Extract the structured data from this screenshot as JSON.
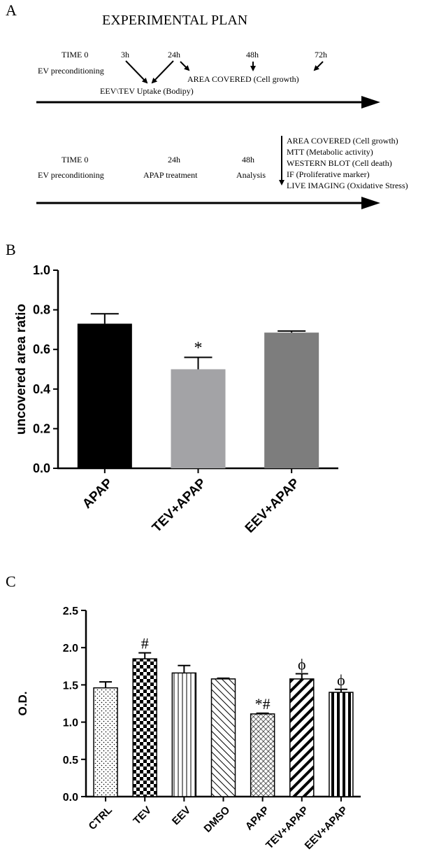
{
  "panel_a": {
    "letter": "A",
    "title": "EXPERIMENTAL PLAN",
    "timeline1": {
      "time0": "TIME 0",
      "t3": "3h",
      "t24": "24h",
      "t48": "48h",
      "t72": "72h",
      "precond": "EV preconditioning",
      "area": "AREA COVERED (Cell growth)",
      "uptake": "EEV\\TEV Uptake (Bodipy)"
    },
    "timeline2": {
      "time0": "TIME 0",
      "t24": "24h",
      "t48": "48h",
      "precond": "EV preconditioning",
      "apap": "APAP treatment",
      "analysis": "Analysis",
      "readouts": [
        "AREA COVERED (Cell growth)",
        "MTT (Metabolic activity)",
        "WESTERN BLOT (Cell death)",
        "IF (Proliferative marker)",
        "LIVE IMAGING (Oxidative Stress)"
      ]
    }
  },
  "chart_data": [
    {
      "panel": "B",
      "type": "bar",
      "ylabel": "uncovered area ratio",
      "ylim": [
        0,
        1.0
      ],
      "yticks": [
        "0.0",
        "0.2",
        "0.4",
        "0.6",
        "0.8",
        "1.0"
      ],
      "categories": [
        "APAP",
        "TEV+APAP",
        "EEV+APAP"
      ],
      "values": [
        0.73,
        0.5,
        0.685
      ],
      "errors": [
        0.05,
        0.06,
        0.008
      ],
      "annotations": [
        "",
        "*",
        ""
      ],
      "colors": [
        "#000000",
        "#a3a3a6",
        "#7d7d7d"
      ]
    },
    {
      "panel": "C",
      "type": "bar",
      "ylabel": "O.D.",
      "ylim": [
        0,
        2.5
      ],
      "yticks": [
        "0.0",
        "0.5",
        "1.0",
        "1.5",
        "2.0",
        "2.5"
      ],
      "categories": [
        "CTRL",
        "TEV",
        "EEV",
        "DMSO",
        "APAP",
        "TEV+APAP",
        "EEV+APAP"
      ],
      "values": [
        1.46,
        1.85,
        1.66,
        1.58,
        1.11,
        1.58,
        1.4
      ],
      "errors": [
        0.08,
        0.08,
        0.1,
        0.01,
        0.01,
        0.07,
        0.04
      ],
      "annotations": [
        "",
        "#",
        "",
        "",
        "*#",
        "ϕ",
        "ϕ"
      ],
      "patterns": [
        "dots",
        "checker",
        "vlines",
        "diag-back",
        "diag-fwd-thin",
        "diag-fwd-thick",
        "vbars-thick"
      ]
    }
  ]
}
